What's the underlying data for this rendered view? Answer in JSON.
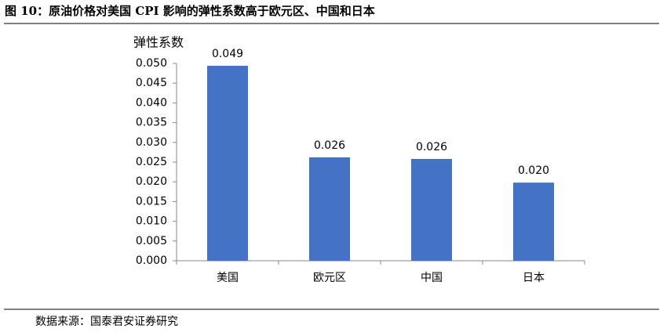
{
  "header": {
    "title": "图 10：原油价格对美国 CPI 影响的弹性系数高于欧元区、中国和日本"
  },
  "chart_data": {
    "type": "bar",
    "y_label": "弹性系数",
    "categories": [
      "美国",
      "欧元区",
      "中国",
      "日本"
    ],
    "values": [
      0.0494,
      0.0262,
      0.0258,
      0.0198
    ],
    "value_labels": [
      "0.049",
      "0.026",
      "0.026",
      "0.020"
    ],
    "color": "#4472c4",
    "ylim": [
      0,
      0.05
    ],
    "yticks": [
      {
        "value": 0,
        "label": "0.000"
      },
      {
        "value": 0.005,
        "label": "0.005"
      },
      {
        "value": 0.01,
        "label": "0.010"
      },
      {
        "value": 0.015,
        "label": "0.015"
      },
      {
        "value": 0.02,
        "label": "0.020"
      },
      {
        "value": 0.025,
        "label": "0.025"
      },
      {
        "value": 0.03,
        "label": "0.030"
      },
      {
        "value": 0.035,
        "label": "0.035"
      },
      {
        "value": 0.04,
        "label": "0.040"
      },
      {
        "value": 0.045,
        "label": "0.045"
      },
      {
        "value": 0.05,
        "label": "0.050"
      }
    ],
    "grid": false
  },
  "footer": {
    "source": "数据来源：国泰君安证券研究"
  }
}
